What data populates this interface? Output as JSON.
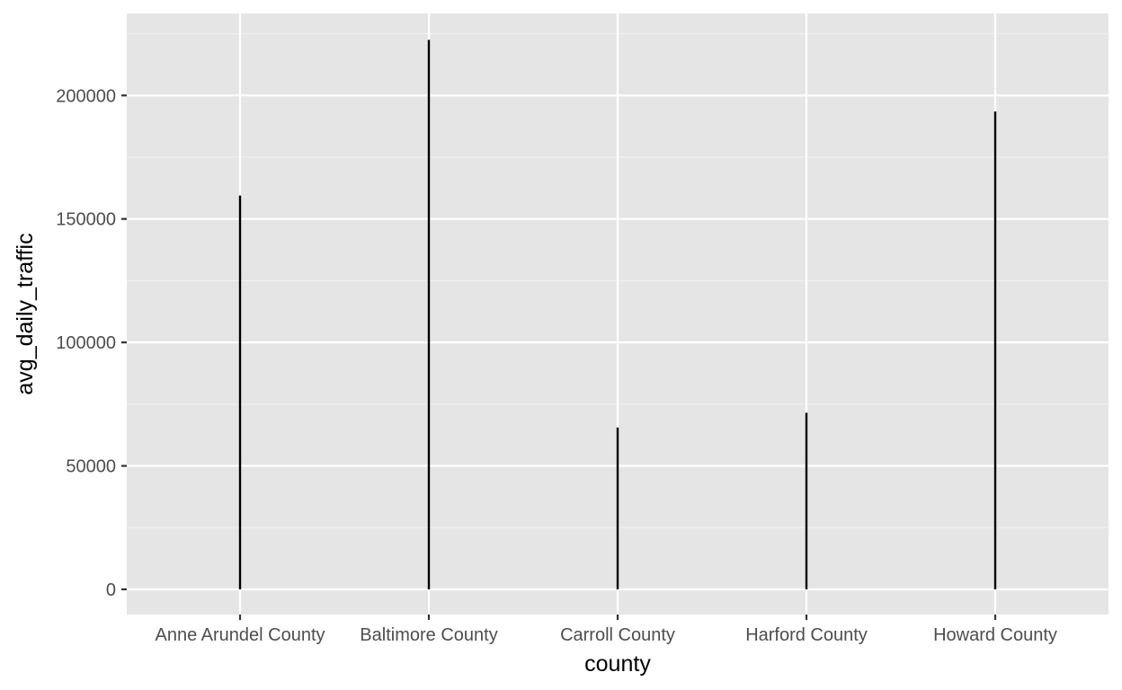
{
  "chart_data": {
    "type": "line",
    "title": "",
    "xlabel": "county",
    "ylabel": "avg_daily_traffic",
    "categories": [
      "Anne Arundel County",
      "Baltimore County",
      "Carroll County",
      "Harford County",
      "Howard County"
    ],
    "ranges": [
      {
        "category": "Anne Arundel County",
        "min": 0,
        "max": 159500
      },
      {
        "category": "Baltimore County",
        "min": 0,
        "max": 222500
      },
      {
        "category": "Carroll County",
        "min": 0,
        "max": 65500
      },
      {
        "category": "Harford County",
        "min": 0,
        "max": 71500
      },
      {
        "category": "Howard County",
        "min": 0,
        "max": 193500
      }
    ],
    "ylim": [
      -10200,
      233200
    ],
    "y_ticks": [
      0,
      50000,
      100000,
      150000,
      200000
    ],
    "y_tick_labels": [
      "0",
      "50000",
      "100000",
      "150000",
      "200000"
    ],
    "grid": true,
    "legend": "none",
    "colors": {
      "panel_background": "#e5e5e5",
      "grid_major": "#ffffff",
      "grid_minor": "#f2f2f2",
      "line": "#000000",
      "tick_label": "#4d4d4d",
      "axis_title": "#000000"
    }
  }
}
